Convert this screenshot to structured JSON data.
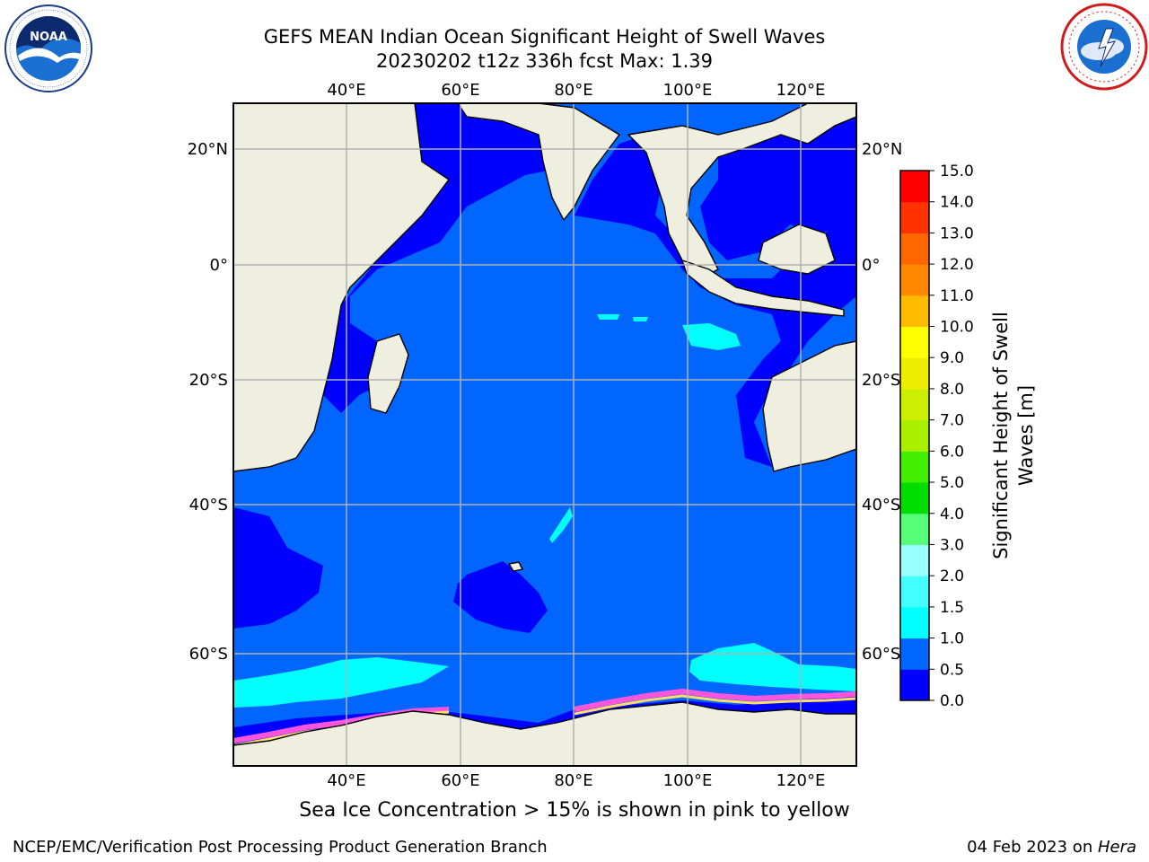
{
  "title": {
    "line1": "GEFS MEAN Indian Ocean Significant Height of Swell Waves",
    "line2": "20230202 t12z 336h fcst   Max: 1.39"
  },
  "logos": {
    "left": {
      "name": "noaa-logo",
      "text": "NOAA",
      "ring_text": "NATIONAL OCEANIC AND ATMOSPHERIC ADMINISTRATION · U.S. DEPARTMENT OF COMMERCE"
    },
    "right": {
      "name": "national-weather-service-logo",
      "ring_text": "NATIONAL WEATHER SERVICE"
    }
  },
  "map": {
    "lon_ticks": [
      "40°E",
      "60°E",
      "80°E",
      "100°E",
      "120°E"
    ],
    "lat_ticks": [
      "20°N",
      "0°",
      "20°S",
      "40°S",
      "60°S"
    ],
    "ocean_color_primary": "#0066ff",
    "ocean_color_low": "#0000ff",
    "swell_high_color": "#00ffff",
    "land_color": "#efefdf",
    "grid_color": "#b0b0b0"
  },
  "colorbar": {
    "label": "Significant Height of Swell Waves [m]",
    "ticks": [
      "0.0",
      "0.5",
      "1.0",
      "1.5",
      "2.0",
      "3.0",
      "4.0",
      "5.0",
      "6.0",
      "7.0",
      "8.0",
      "9.0",
      "10.0",
      "11.0",
      "12.0",
      "13.0",
      "14.0",
      "15.0"
    ],
    "colors": [
      "#0000ff",
      "#0066ff",
      "#00ffff",
      "#44ffff",
      "#99ffff",
      "#55ff77",
      "#00dd00",
      "#44ee00",
      "#aaee00",
      "#ccee00",
      "#eeee00",
      "#ffff00",
      "#ffbb00",
      "#ff8800",
      "#ff6600",
      "#ff3300",
      "#ff0000"
    ]
  },
  "sea_ice_note": "Sea Ice Concentration > 15% is shown in pink to yellow",
  "footer": {
    "left": "NCEP/EMC/Verification Post Processing Product Generation Branch",
    "right_prefix": "04 Feb 2023 on ",
    "right_machine": "Hera"
  }
}
